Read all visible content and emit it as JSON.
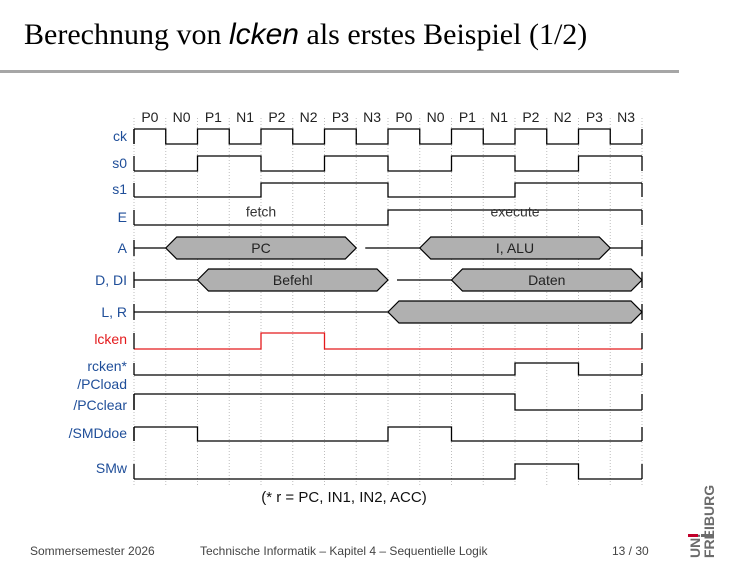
{
  "slide": {
    "title_prefix": "Berechnung von ",
    "title_emph": "lcken",
    "title_suffix": " als erstes Beispiel (1/2)"
  },
  "diagram": {
    "phases": [
      "P0",
      "N0",
      "P1",
      "N1",
      "P2",
      "N2",
      "P3",
      "N3",
      "P0",
      "N0",
      "P1",
      "N1",
      "P2",
      "N2",
      "P3",
      "N3"
    ],
    "signals": [
      {
        "name": "ck",
        "type": "wave",
        "color": "#1f4e99",
        "levels": [
          1,
          0,
          1,
          0,
          1,
          0,
          1,
          0,
          1,
          0,
          1,
          0,
          1,
          0,
          1,
          0
        ]
      },
      {
        "name": "s0",
        "type": "wave",
        "color": "#1f4e99",
        "levels": [
          0,
          0,
          1,
          1,
          0,
          0,
          1,
          1,
          0,
          0,
          1,
          1,
          0,
          0,
          1,
          1
        ]
      },
      {
        "name": "s1",
        "type": "wave",
        "color": "#1f4e99",
        "levels": [
          0,
          0,
          0,
          0,
          1,
          1,
          1,
          1,
          0,
          0,
          0,
          0,
          1,
          1,
          1,
          1
        ]
      },
      {
        "name": "E",
        "type": "wave",
        "color": "#1f4e99",
        "levels": [
          0,
          0,
          0,
          0,
          0,
          0,
          0,
          0,
          1,
          1,
          1,
          1,
          1,
          1,
          1,
          1
        ],
        "notes": [
          {
            "text": "fetch",
            "at": 4
          },
          {
            "text": "execute",
            "at": 12
          }
        ]
      },
      {
        "name": "A",
        "type": "bus",
        "color": "#1f4e99",
        "buses": [
          {
            "start": 0.5,
            "end": 3.5,
            "label": "PC"
          },
          {
            "start": 4.5,
            "end": 7.5,
            "label": "I, ALU"
          }
        ]
      },
      {
        "name": "D, DI",
        "type": "bus",
        "color": "#1f4e99",
        "buses": [
          {
            "start": 1,
            "end": 4,
            "label": "Befehl"
          },
          {
            "start": 5,
            "end": 8,
            "label": "Daten"
          }
        ]
      },
      {
        "name": "L, R",
        "type": "bus",
        "color": "#1f4e99",
        "buses": [
          {
            "start": 4,
            "end": 8,
            "label": ""
          }
        ]
      },
      {
        "name": "lcken",
        "type": "wave",
        "color": "#e41a1c",
        "levels": [
          0,
          0,
          0,
          0,
          1,
          1,
          0,
          0,
          0,
          0,
          0,
          0,
          0,
          0,
          0,
          0
        ]
      },
      {
        "name": "rcken*",
        "type": "wave",
        "color": "#1f4e99",
        "levels": [
          0,
          0,
          0,
          0,
          0,
          0,
          0,
          0,
          0,
          0,
          0,
          0,
          1,
          1,
          0,
          0
        ]
      },
      {
        "name": "/PCload",
        "type": "label",
        "color": "#1f4e99"
      },
      {
        "name": "/PCclear",
        "type": "wave",
        "color": "#1f4e99",
        "levels": [
          1,
          1,
          1,
          1,
          1,
          1,
          1,
          1,
          1,
          1,
          1,
          1,
          0,
          0,
          0,
          0
        ]
      },
      {
        "name": "/SMDdoe",
        "type": "wave",
        "color": "#1f4e99",
        "levels": [
          1,
          1,
          0,
          0,
          0,
          0,
          0,
          0,
          1,
          1,
          0,
          0,
          0,
          0,
          0,
          0
        ]
      },
      {
        "name": "SMw",
        "type": "wave",
        "color": "#1f4e99",
        "levels": [
          0,
          0,
          0,
          0,
          0,
          0,
          0,
          0,
          0,
          0,
          0,
          0,
          1,
          1,
          0,
          0
        ]
      }
    ],
    "footnote": "(* r = PC, IN1, IN2, ACC)"
  },
  "footer": {
    "semester": "Sommersemester 2026",
    "course": "Technische Informatik –  Kapitel 4 – Sequentielle Logik",
    "page": "13 / 30"
  },
  "logo": {
    "line1": "UNI",
    "line2": "FREIBURG",
    "accent_color": "#c1002a"
  }
}
